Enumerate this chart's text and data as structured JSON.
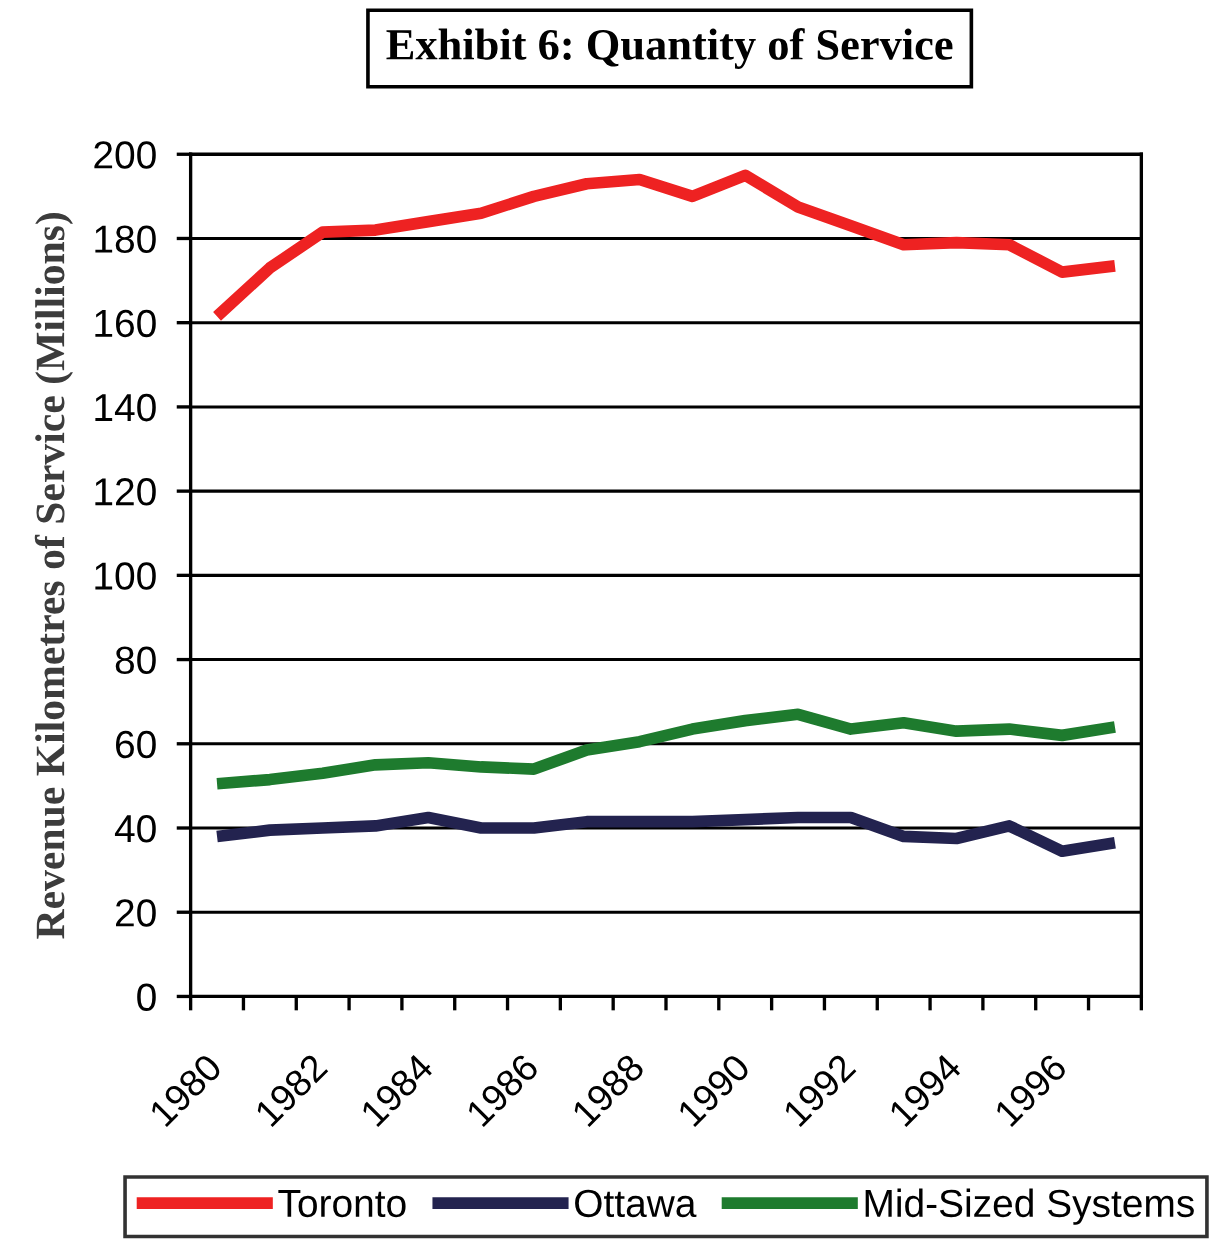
{
  "chart_data": {
    "type": "line",
    "title": "Exhibit 6: Quantity of Service",
    "ylabel": "Revenue Kilometres of Service (Millions)",
    "categories": [
      "1980",
      null,
      "1982",
      null,
      "1984",
      null,
      "1986",
      null,
      "1988",
      null,
      "1990",
      null,
      "1992",
      null,
      "1994",
      null,
      "1996",
      null
    ],
    "series": [
      {
        "name": "Toronto",
        "color": "#ee2222",
        "values": [
          161.5,
          173,
          181.5,
          182,
          184,
          186,
          190,
          193,
          194,
          190,
          195,
          187.5,
          183,
          178.5,
          179,
          178.5,
          172,
          173.5
        ]
      },
      {
        "name": "Ottawa",
        "color": "#23234f",
        "values": [
          38,
          39.5,
          40,
          40.5,
          42.5,
          40,
          40,
          41.5,
          41.5,
          41.5,
          42,
          42.5,
          42.5,
          38,
          37.5,
          40.5,
          34.5,
          36.5
        ]
      },
      {
        "name": "Mid-Sized Systems",
        "color": "#1e7b2e",
        "values": [
          50.5,
          51.5,
          53,
          55,
          55.5,
          54.5,
          54,
          58.5,
          60.5,
          63.5,
          65.5,
          67,
          63.5,
          65,
          63,
          63.5,
          62,
          64
        ]
      }
    ],
    "ylim": [
      0,
      200
    ],
    "yticks": [
      0,
      20,
      40,
      60,
      80,
      100,
      120,
      140,
      160,
      180,
      200
    ],
    "grid": "y",
    "legend": "bottom"
  }
}
